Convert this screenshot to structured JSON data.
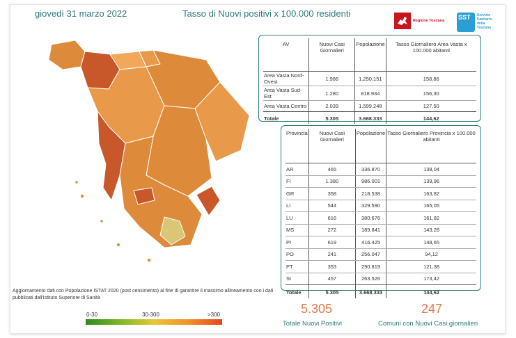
{
  "header": {
    "date": "giovedì 31 marzo 2022",
    "title": "Tasso di Nuovi positivi x 100.000 residenti",
    "logo_regione_text": "Regione Toscana",
    "logo_sst_abbr": "SST",
    "logo_sst_text": "Servizio Sanitario della Toscana"
  },
  "av_table": {
    "headers": [
      "AV",
      "Nuovi Casi Giornalieri",
      "Popolazione",
      "Tasso Giornaliero Area Vasta x 100.000 abitanti"
    ],
    "rows": [
      [
        "Area Vasta Nord-Ovest",
        "1.986",
        "1.250.151",
        "158,86"
      ],
      [
        "Area Vasta Sud-Est",
        "1.280",
        "818.934",
        "156,30"
      ],
      [
        "Area Vasta Centro",
        "2.039",
        "1.599.248",
        "127,50"
      ]
    ],
    "total": [
      "Totale",
      "5.305",
      "3.668.333",
      "144,62"
    ]
  },
  "prov_table": {
    "headers": [
      "Provincia",
      "Nuovi Casi Giornalieri",
      "Popolazione",
      "Tasso Giornaliero Provincia x 100.000 abitanti"
    ],
    "rows": [
      [
        "AR",
        "465",
        "336.870",
        "138,04"
      ],
      [
        "FI",
        "1.380",
        "986.001",
        "139,96"
      ],
      [
        "GR",
        "358",
        "218.538",
        "163,82"
      ],
      [
        "LI",
        "544",
        "329.590",
        "165,05"
      ],
      [
        "LU",
        "616",
        "380.676",
        "161,82"
      ],
      [
        "MS",
        "272",
        "189.841",
        "143,28"
      ],
      [
        "PI",
        "619",
        "416.425",
        "148,65"
      ],
      [
        "PO",
        "241",
        "256.047",
        "94,12"
      ],
      [
        "PT",
        "353",
        "290.819",
        "121,38"
      ],
      [
        "SI",
        "457",
        "263.526",
        "173,42"
      ]
    ],
    "total": [
      "Totale",
      "5.305",
      "3.668.333",
      "144,62"
    ]
  },
  "note": "Aggiornamento dati con Popolazione ISTAT 2020 (post censimento) al fine di garantire il massimo allineamento con i dati pubblicati dall'Istituto Superiore di Sanità",
  "legend": {
    "labels": [
      "0-30",
      "30-300",
      ">300"
    ],
    "colors": [
      "#2e8b1e",
      "#e8c638",
      "#e8451e"
    ]
  },
  "kpis": {
    "total_value": "5.305",
    "total_label": "Totale Nuovi Positivi",
    "comuni_value": "247",
    "comuni_label": "Comuni con Nuovi Casi giornalieri"
  },
  "colors": {
    "accent": "#2c7a7a",
    "kpi": "#e07a50",
    "map_light": "#f2a85a",
    "map_mid": "#dd8a3a",
    "map_dark": "#c8582a",
    "map_pale": "#d9c776"
  }
}
